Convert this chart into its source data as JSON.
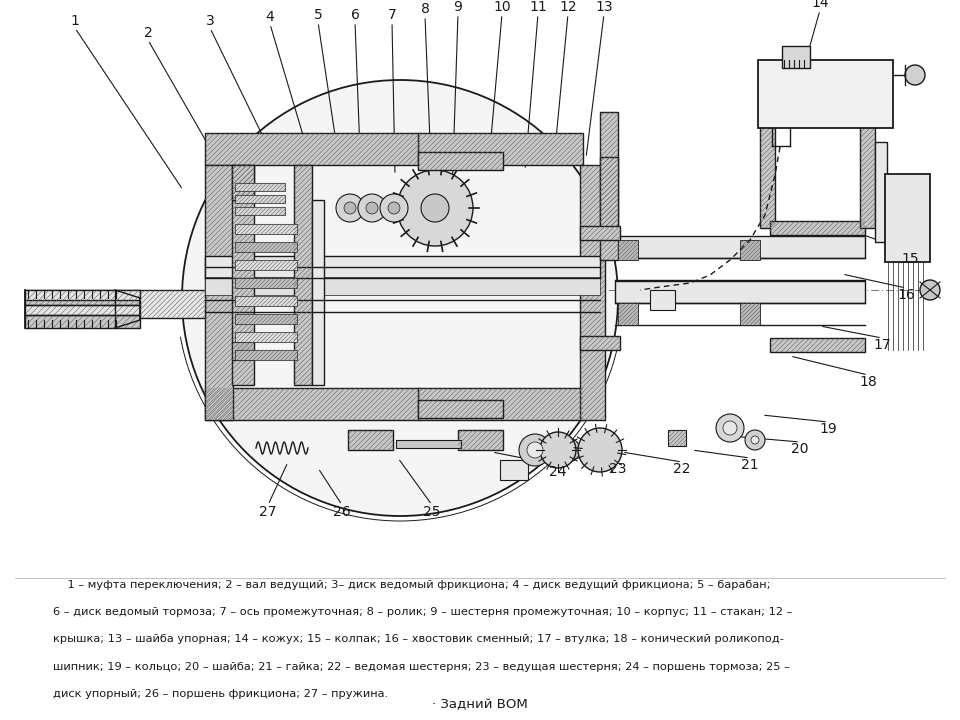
{
  "bg_color": "#ffffff",
  "text_color": "#1a1a1a",
  "subtitle": "· Задний ВОМ",
  "legend_lines": [
    "    1 – муфта переключения; 2 – вал ведущий; 3– диск ведомый фрикциона; 4 – диск ведущий фрикциона; 5 – барабан;",
    "6 – диск ведомый тормоза; 7 – ось промежуточная; 8 – ролик; 9 – шестерня промежуточная; 10 – корпус; 11 – стакан; 12 –",
    "крышка; 13 – шайба упорная; 14 – кожух; 15 – колпак; 16 – хвостовик сменный; 17 – втулка; 18 – конический роликопод-",
    "шипник; 19 – кольцо; 20 – шайба; 21 – гайка; 22 – ведомая шестерня; 23 – ведущая шестерня; 24 – поршень тормоза; 25 –",
    "диск упорный; 26 – поршень фрикциона; 27 – пружина."
  ],
  "font_size_labels": 10,
  "font_size_legend": 8.2,
  "font_size_subtitle": 9.5,
  "top_labels": [
    [
      1,
      75,
      28,
      183,
      190
    ],
    [
      2,
      148,
      40,
      218,
      162
    ],
    [
      3,
      210,
      28,
      272,
      155
    ],
    [
      4,
      270,
      24,
      308,
      152
    ],
    [
      5,
      318,
      22,
      338,
      155
    ],
    [
      6,
      355,
      22,
      360,
      152
    ],
    [
      7,
      392,
      22,
      395,
      175
    ],
    [
      8,
      425,
      16,
      432,
      192
    ],
    [
      9,
      458,
      14,
      452,
      195
    ],
    [
      10,
      502,
      14,
      488,
      172
    ],
    [
      11,
      538,
      14,
      525,
      170
    ],
    [
      12,
      568,
      14,
      554,
      160
    ],
    [
      13,
      604,
      14,
      586,
      158
    ],
    [
      14,
      820,
      10,
      798,
      88
    ]
  ],
  "right_labels": [
    [
      15,
      910,
      252,
      845,
      228
    ],
    [
      16,
      906,
      288,
      842,
      274
    ],
    [
      17,
      882,
      338,
      820,
      326
    ],
    [
      18,
      868,
      375,
      790,
      356
    ],
    [
      19,
      828,
      422,
      762,
      415
    ],
    [
      20,
      800,
      442,
      730,
      436
    ],
    [
      21,
      750,
      458,
      692,
      450
    ],
    [
      22,
      682,
      462,
      622,
      452
    ],
    [
      23,
      618,
      462,
      558,
      452
    ],
    [
      24,
      558,
      465,
      492,
      452
    ],
    [
      25,
      432,
      505,
      398,
      458
    ],
    [
      26,
      342,
      505,
      318,
      468
    ],
    [
      27,
      268,
      505,
      288,
      462
    ]
  ]
}
